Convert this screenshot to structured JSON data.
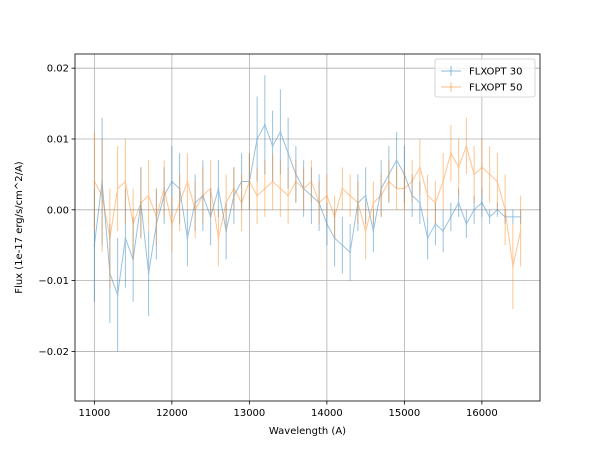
{
  "chart_data": {
    "type": "line",
    "title": "",
    "xlabel": "Wavelength (A)",
    "ylabel": "Flux (1e-17 erg/s/cm^2/A)",
    "xlim": [
      10750,
      16750
    ],
    "ylim": [
      -0.027,
      0.022
    ],
    "xticks": [
      11000,
      12000,
      13000,
      14000,
      15000,
      16000
    ],
    "xtick_labels": [
      "11000",
      "12000",
      "13000",
      "14000",
      "15000",
      "16000"
    ],
    "yticks": [
      -0.02,
      -0.01,
      0.0,
      0.01,
      0.02
    ],
    "ytick_labels": [
      "−0.02",
      "−0.01",
      "0.00",
      "0.01",
      "0.02"
    ],
    "grid": true,
    "legend_position": "top-right",
    "error_bars": true,
    "series": [
      {
        "name": "FLXOPT 30",
        "color": "#1f77b4",
        "x": [
          11000,
          11100,
          11200,
          11300,
          11400,
          11500,
          11600,
          11700,
          11800,
          11900,
          12000,
          12100,
          12200,
          12300,
          12400,
          12500,
          12600,
          12700,
          12800,
          12900,
          13000,
          13100,
          13200,
          13300,
          13400,
          13500,
          13600,
          13700,
          13800,
          13900,
          14000,
          14100,
          14200,
          14300,
          14400,
          14500,
          14600,
          14700,
          14800,
          14900,
          15000,
          15100,
          15200,
          15300,
          15400,
          15500,
          15600,
          15700,
          15800,
          15900,
          16000,
          16100,
          16200,
          16300,
          16400,
          16500
        ],
        "y": [
          -0.005,
          0.004,
          -0.009,
          -0.012,
          -0.004,
          -0.007,
          0.001,
          -0.009,
          -0.002,
          0.002,
          0.004,
          0.003,
          -0.004,
          0.001,
          0.002,
          -0.001,
          0.003,
          -0.003,
          0.002,
          0.004,
          0.004,
          0.01,
          0.012,
          0.009,
          0.011,
          0.008,
          0.005,
          0.003,
          0.002,
          0.001,
          -0.002,
          -0.004,
          -0.005,
          -0.006,
          0.001,
          0.002,
          -0.003,
          0.003,
          0.005,
          0.007,
          0.005,
          0.002,
          0.001,
          -0.004,
          -0.002,
          -0.003,
          -0.001,
          0.001,
          -0.002,
          0.0,
          0.001,
          -0.001,
          0.0,
          -0.001,
          -0.001,
          -0.001
        ],
        "error": [
          0.008,
          0.009,
          0.007,
          0.008,
          0.007,
          0.006,
          0.005,
          0.006,
          0.005,
          0.004,
          0.005,
          0.005,
          0.004,
          0.004,
          0.005,
          0.004,
          0.004,
          0.004,
          0.004,
          0.004,
          0.004,
          0.006,
          0.007,
          0.005,
          0.006,
          0.005,
          0.004,
          0.004,
          0.004,
          0.004,
          0.003,
          0.004,
          0.004,
          0.004,
          0.004,
          0.004,
          0.003,
          0.004,
          0.004,
          0.004,
          0.004,
          0.003,
          0.003,
          0.003,
          0.003,
          0.003,
          0.002,
          0.002,
          0.002,
          0.002,
          0.002,
          0.001,
          0.001,
          0.001,
          0.001,
          0.001
        ]
      },
      {
        "name": "FLXOPT 50",
        "color": "#ff7f0e",
        "x": [
          11000,
          11100,
          11200,
          11300,
          11400,
          11500,
          11600,
          11700,
          11800,
          11900,
          12000,
          12100,
          12200,
          12300,
          12400,
          12500,
          12600,
          12700,
          12800,
          12900,
          13000,
          13100,
          13200,
          13300,
          13400,
          13500,
          13600,
          13700,
          13800,
          13900,
          14000,
          14100,
          14200,
          14300,
          14400,
          14500,
          14600,
          14700,
          14800,
          14900,
          15000,
          15100,
          15200,
          15300,
          15400,
          15500,
          15600,
          15700,
          15800,
          15900,
          16000,
          16100,
          16200,
          16300,
          16400,
          16500
        ],
        "y": [
          0.004,
          0.002,
          -0.004,
          0.003,
          0.004,
          -0.002,
          0.001,
          0.002,
          -0.001,
          0.003,
          -0.002,
          0.001,
          0.004,
          0.0,
          0.002,
          0.003,
          -0.004,
          0.001,
          0.003,
          0.001,
          0.004,
          0.002,
          0.003,
          0.004,
          0.003,
          0.002,
          0.004,
          0.003,
          0.004,
          0.001,
          0.002,
          -0.001,
          0.003,
          0.002,
          0.001,
          -0.003,
          0.001,
          0.002,
          0.004,
          0.003,
          0.003,
          0.004,
          0.006,
          0.002,
          0.001,
          0.004,
          0.008,
          0.006,
          0.009,
          0.005,
          0.006,
          0.005,
          0.004,
          0.0,
          -0.008,
          -0.003
        ],
        "error": [
          0.007,
          0.008,
          0.007,
          0.006,
          0.006,
          0.005,
          0.005,
          0.005,
          0.004,
          0.004,
          0.004,
          0.004,
          0.004,
          0.004,
          0.004,
          0.004,
          0.004,
          0.004,
          0.003,
          0.004,
          0.004,
          0.004,
          0.004,
          0.004,
          0.004,
          0.004,
          0.003,
          0.003,
          0.003,
          0.003,
          0.003,
          0.003,
          0.003,
          0.003,
          0.003,
          0.004,
          0.003,
          0.003,
          0.003,
          0.003,
          0.003,
          0.003,
          0.004,
          0.003,
          0.003,
          0.004,
          0.004,
          0.004,
          0.004,
          0.004,
          0.004,
          0.004,
          0.004,
          0.005,
          0.006,
          0.005
        ]
      }
    ]
  }
}
